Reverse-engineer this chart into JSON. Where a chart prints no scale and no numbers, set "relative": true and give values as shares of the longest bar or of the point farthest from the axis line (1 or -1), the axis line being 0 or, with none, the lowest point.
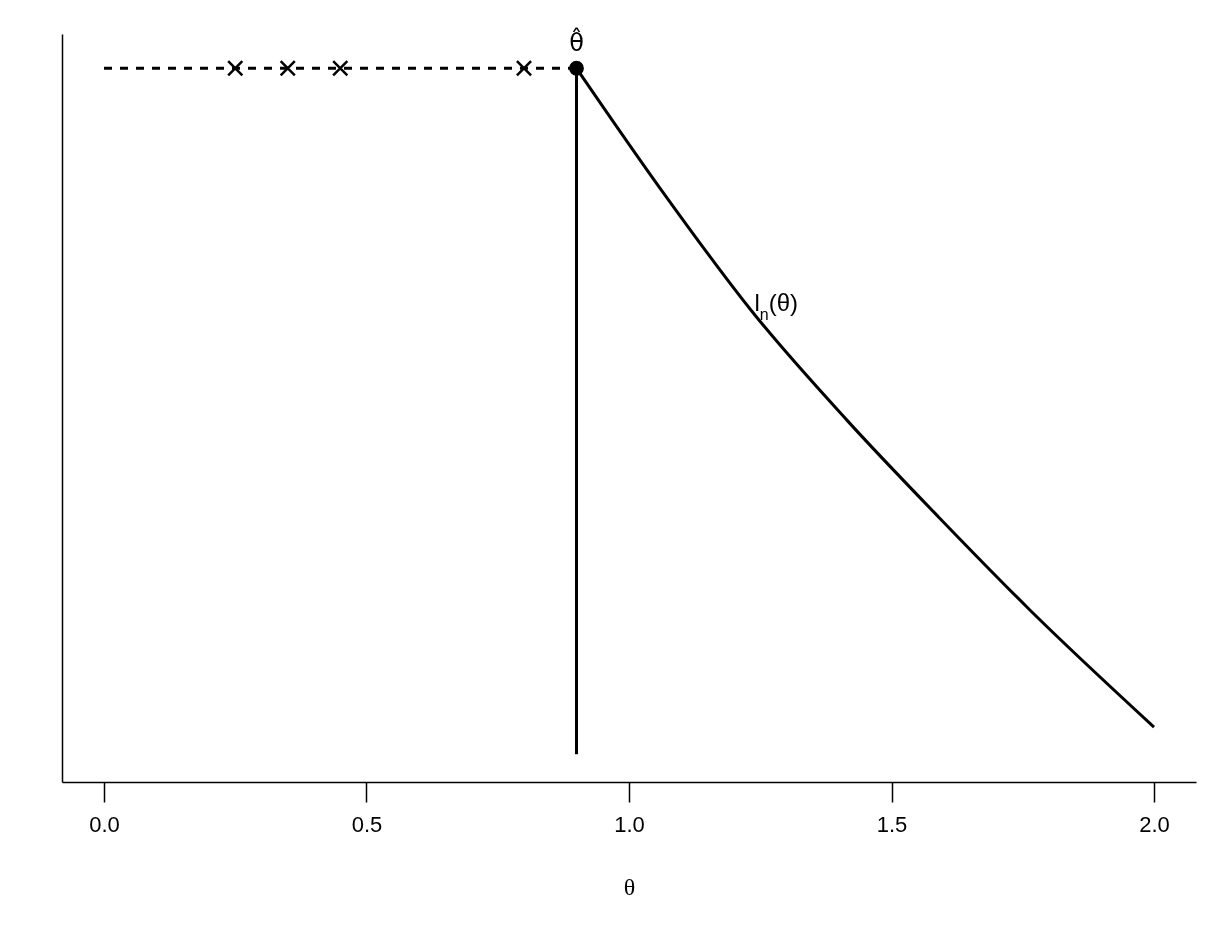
{
  "chart_data": {
    "type": "line",
    "relative": true,
    "xlabel": "θ",
    "xlim": [
      -0.08,
      2.08
    ],
    "xticks": [
      {
        "value": 0,
        "label": "0.0"
      },
      {
        "value": 0.5,
        "label": "0.5"
      },
      {
        "value": 1,
        "label": "1.0"
      },
      {
        "value": 1.5,
        "label": "1.5"
      },
      {
        "value": 2,
        "label": "2.0"
      }
    ],
    "series": [
      {
        "color": "#000000",
        "line_style": "solid",
        "x": [
          0.9,
          1.062,
          1.239,
          1.415,
          1.59,
          1.765,
          2.0
        ],
        "values": [
          1,
          0.829,
          0.655,
          0.507,
          0.371,
          0.24,
          0.077
        ]
      },
      {
        "color": "#000000",
        "line_style": "solid",
        "x": [
          0.9,
          0.9
        ],
        "values": [
          0.039,
          1
        ]
      },
      {
        "color": "#000000",
        "line_style": "dashed",
        "x": [
          0,
          0.9
        ],
        "values": [
          1,
          1
        ]
      },
      {
        "type": "scatter",
        "color": "#000000",
        "marker": "cross",
        "x": [
          0.25,
          0.35,
          0.45,
          0.8
        ],
        "values": [
          1,
          1,
          1,
          1
        ]
      },
      {
        "type": "scatter",
        "color": "#000000",
        "marker": "circle",
        "x": [
          0.9
        ],
        "values": [
          1
        ]
      }
    ],
    "annotations": [
      {
        "text": "θ̂",
        "x": 0.9,
        "y": 1
      },
      {
        "text": "l$_{n}$(θ)",
        "x": 1.239,
        "y": 0.655
      }
    ]
  }
}
